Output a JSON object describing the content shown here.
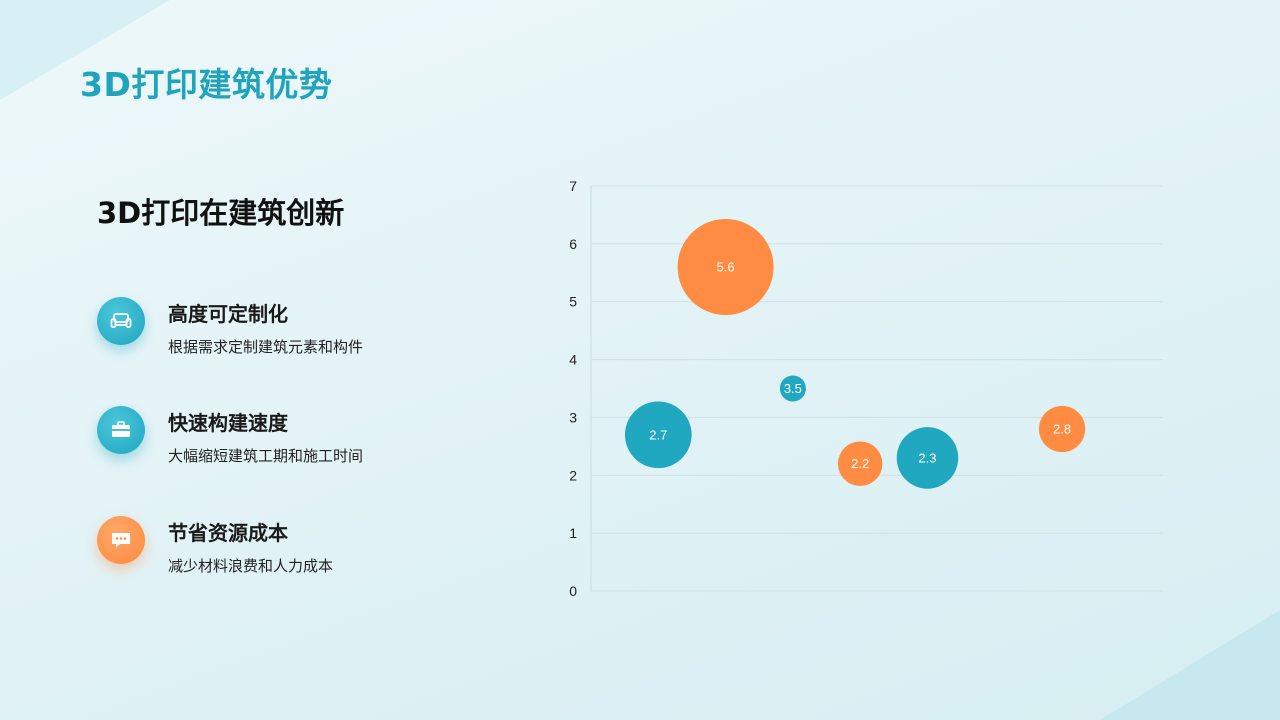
{
  "page": {
    "title": "3D打印建筑优势",
    "section_title": "3D打印在建筑创新"
  },
  "features": [
    {
      "title": "高度可定制化",
      "desc": "根据需求定制建筑元素和构件",
      "icon": "sofa-icon",
      "color": "#1fa9c2"
    },
    {
      "title": "快速构建速度",
      "desc": "大幅缩短建筑工期和施工时间",
      "icon": "briefcase-icon",
      "color": "#1fa9c2"
    },
    {
      "title": "节省资源成本",
      "desc": "减少材料浪费和人力成本",
      "icon": "chat-icon",
      "color": "#ff8a3d"
    }
  ],
  "colors": {
    "teal": "#20a8c1",
    "orange": "#ff8c42",
    "title_teal": "#1fa4bd"
  },
  "chart_data": {
    "type": "scatter",
    "ylim": [
      0,
      7
    ],
    "y_ticks": [
      0,
      1,
      2,
      3,
      4,
      5,
      6,
      7
    ],
    "grid": true,
    "points": [
      {
        "x": 1,
        "y": 2.7,
        "size": 2.7,
        "label": "2.7",
        "color": "#20a8c1"
      },
      {
        "x": 2,
        "y": 5.6,
        "size": 5.6,
        "label": "5.6",
        "color": "#ff8c42"
      },
      {
        "x": 3,
        "y": 3.5,
        "size": 0.4,
        "label": "3.5",
        "color": "#20a8c1"
      },
      {
        "x": 4,
        "y": 2.2,
        "size": 1.2,
        "label": "2.2",
        "color": "#ff8c42"
      },
      {
        "x": 5,
        "y": 2.3,
        "size": 2.3,
        "label": "2.3",
        "color": "#20a8c1"
      },
      {
        "x": 7,
        "y": 2.8,
        "size": 1.3,
        "label": "2.8",
        "color": "#ff8c42"
      }
    ]
  }
}
